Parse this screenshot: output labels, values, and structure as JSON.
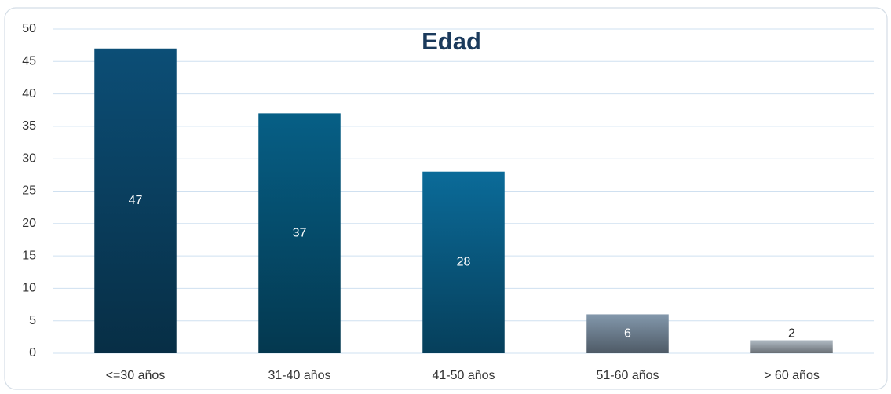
{
  "chart_data": {
    "type": "bar",
    "title": "Edad",
    "categories": [
      "<=30 años",
      "31-40 años",
      "41-50 años",
      "51-60 años",
      "> 60 años"
    ],
    "values": [
      47,
      37,
      28,
      6,
      2
    ],
    "colors": [
      "#0b4a70",
      "#065a80",
      "#0a6692",
      "#7d91a4",
      "#a9b3bc"
    ],
    "ylim": [
      0,
      50
    ],
    "yticks": [
      0,
      5,
      10,
      15,
      20,
      25,
      30,
      35,
      40,
      45,
      50
    ],
    "grid": true
  }
}
